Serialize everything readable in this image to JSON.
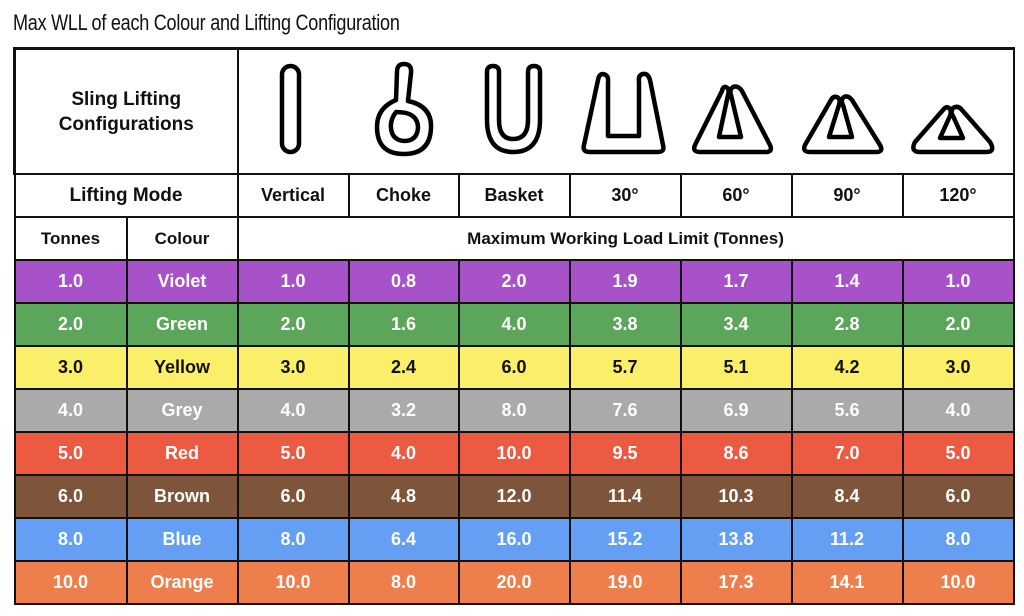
{
  "title": "Max WLL of each Colour and Lifting Configuration",
  "config_label": "Sling Lifting Configurations",
  "config_icons": [
    "vertical-sling-icon",
    "choke-sling-icon",
    "basket-sling-icon",
    "30-degree-sling-icon",
    "60-degree-sling-icon",
    "90-degree-sling-icon",
    "120-degree-sling-icon"
  ],
  "mode_label": "Lifting Mode",
  "modes": [
    "Vertical",
    "Choke",
    "Basket",
    "30°",
    "60°",
    "90°",
    "120°"
  ],
  "tonnes_label": "Tonnes",
  "colour_label": "Colour",
  "wll_label": "Maximum Working Load Limit (Tonnes)",
  "rows": [
    {
      "tonnes": "1.0",
      "colour": "Violet",
      "bg": "#a752c9",
      "text": "#ffffff",
      "values": [
        "1.0",
        "0.8",
        "2.0",
        "1.9",
        "1.7",
        "1.4",
        "1.0"
      ]
    },
    {
      "tonnes": "2.0",
      "colour": "Green",
      "bg": "#5ba65a",
      "text": "#ffffff",
      "values": [
        "2.0",
        "1.6",
        "4.0",
        "3.8",
        "3.4",
        "2.8",
        "2.0"
      ]
    },
    {
      "tonnes": "3.0",
      "colour": "Yellow",
      "bg": "#fbef6a",
      "text": "#111111",
      "values": [
        "3.0",
        "2.4",
        "6.0",
        "5.7",
        "5.1",
        "4.2",
        "3.0"
      ]
    },
    {
      "tonnes": "4.0",
      "colour": "Grey",
      "bg": "#aaaaaa",
      "text": "#ffffff",
      "values": [
        "4.0",
        "3.2",
        "8.0",
        "7.6",
        "6.9",
        "5.6",
        "4.0"
      ]
    },
    {
      "tonnes": "5.0",
      "colour": "Red",
      "bg": "#ec5a41",
      "text": "#ffffff",
      "values": [
        "5.0",
        "4.0",
        "10.0",
        "9.5",
        "8.6",
        "7.0",
        "5.0"
      ]
    },
    {
      "tonnes": "6.0",
      "colour": "Brown",
      "bg": "#7e553a",
      "text": "#ffffff",
      "values": [
        "6.0",
        "4.8",
        "12.0",
        "11.4",
        "10.3",
        "8.4",
        "6.0"
      ]
    },
    {
      "tonnes": "8.0",
      "colour": "Blue",
      "bg": "#649ff3",
      "text": "#ffffff",
      "values": [
        "8.0",
        "6.4",
        "16.0",
        "15.2",
        "13.8",
        "11.2",
        "8.0"
      ]
    },
    {
      "tonnes": "10.0",
      "colour": "Orange",
      "bg": "#ee7e4b",
      "text": "#ffffff",
      "values": [
        "10.0",
        "8.0",
        "20.0",
        "19.0",
        "17.3",
        "14.1",
        "10.0"
      ]
    }
  ]
}
